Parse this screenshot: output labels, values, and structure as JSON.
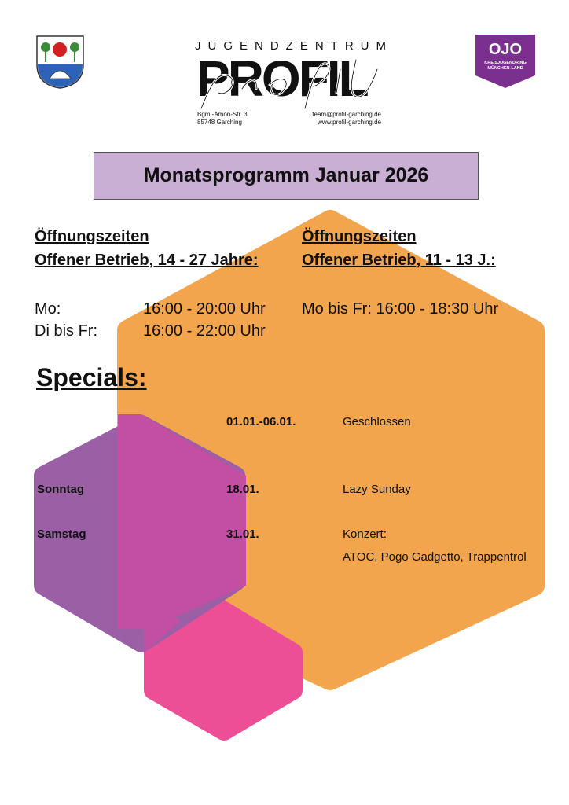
{
  "header": {
    "logo_left": "Garching coat of arms",
    "logo_center": {
      "line1": "JUGENDZENTRUM",
      "word": "PROFIL",
      "script": "profil",
      "address1": "Bgm.-Amon-Str. 3",
      "address2": "85748 Garching",
      "email": "team@profil-garching.de",
      "web": "www.profil-garching.de"
    },
    "logo_right": {
      "mark": "OJO",
      "line1": "KREISJUGENDRING",
      "line2": "MÜNCHEN-LAND",
      "color": "#7b2f8e"
    }
  },
  "title": "Monatsprogramm Januar 2026",
  "hours": {
    "left": {
      "heading1": "Öffnungszeiten",
      "heading2": "Offener Betrieb, 14 - 27 Jahre:",
      "rows": [
        {
          "day": "Mo:",
          "time": "16:00 - 20:00 Uhr"
        },
        {
          "day": "Di bis Fr:",
          "time": "16:00 - 22:00 Uhr"
        }
      ]
    },
    "right": {
      "heading1": "Öffnungszeiten",
      "heading2": "Offener Betrieb, 11 - 13 J.:",
      "row": "Mo bis Fr: 16:00 - 18:30 Uhr"
    }
  },
  "specials": {
    "heading": "Specials:",
    "events": [
      {
        "day": "",
        "date": "01.01.-06.01.",
        "text": "Geschlossen",
        "text2": ""
      },
      {
        "day": "Sonntag",
        "date": "18.01.",
        "text": "Lazy Sunday",
        "text2": ""
      },
      {
        "day": "Samstag",
        "date": "31.01.",
        "text": "Konzert:",
        "text2": "ATOC, Pogo Gadgetto, Trappentrol"
      }
    ]
  },
  "colors": {
    "orange": "#f3a54e",
    "purple": "#9b5fa6",
    "magenta": "#c24fa1",
    "pink": "#ec4f96",
    "title_bg": "#c9afd3"
  }
}
